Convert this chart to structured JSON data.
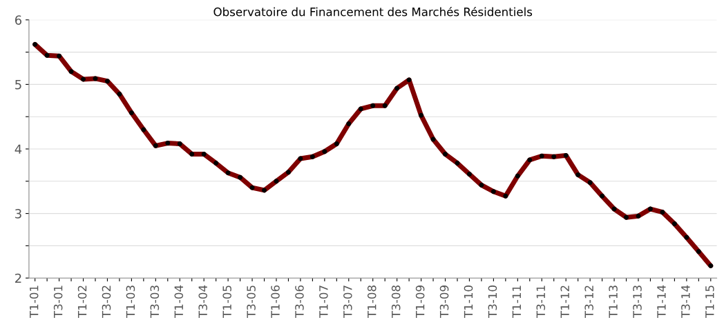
{
  "chart_data": {
    "type": "line",
    "title": "Observatoire du Financement des Marchés Résidentiels",
    "categories": [
      "T1-01",
      null,
      "T3-01",
      null,
      "T1-02",
      null,
      "T3-02",
      null,
      "T1-03",
      null,
      "T3-03",
      null,
      "T1-04",
      null,
      "T3-04",
      null,
      "T1-05",
      null,
      "T3-05",
      null,
      "T1-06",
      null,
      "T3-06",
      null,
      "T1-07",
      null,
      "T3-07",
      null,
      "T1-08",
      null,
      "T3-08",
      null,
      "T1-09",
      null,
      "T3-09",
      null,
      "T1-10",
      null,
      "T3-10",
      null,
      "T1-11",
      null,
      "T3-11",
      null,
      "T1-12",
      null,
      "T3-12",
      null,
      "T1-13",
      null,
      "T3-13",
      null,
      "T1-14",
      null,
      "T3-14",
      null,
      "T1-15"
    ],
    "series": [
      {
        "color": "#7f0000",
        "values": [
          5.62,
          5.45,
          5.44,
          5.2,
          5.08,
          5.09,
          5.05,
          4.85,
          4.56,
          4.3,
          4.05,
          4.09,
          4.08,
          3.92,
          3.92,
          3.78,
          3.63,
          3.56,
          3.4,
          3.36,
          3.5,
          3.64,
          3.85,
          3.88,
          3.96,
          4.08,
          4.39,
          4.62,
          4.67,
          4.67,
          4.94,
          5.07,
          4.52,
          4.15,
          3.92,
          3.78,
          3.61,
          3.44,
          3.34,
          3.27,
          3.58,
          3.83,
          3.89,
          3.88,
          3.9,
          3.6,
          3.48,
          3.27,
          3.07,
          2.94,
          2.96,
          3.07,
          3.02,
          2.84,
          2.63,
          2.41,
          2.19
        ]
      }
    ],
    "ylim": [
      2,
      6
    ],
    "yticks": [
      2,
      {
        "value": 2.5,
        "label": null
      },
      3,
      {
        "value": 3.5,
        "label": null
      },
      4,
      {
        "value": 4.5,
        "label": null
      },
      5,
      {
        "value": 5.5,
        "label": null
      },
      6
    ],
    "grid": "y",
    "marker": "circle",
    "line_style": "solid"
  }
}
